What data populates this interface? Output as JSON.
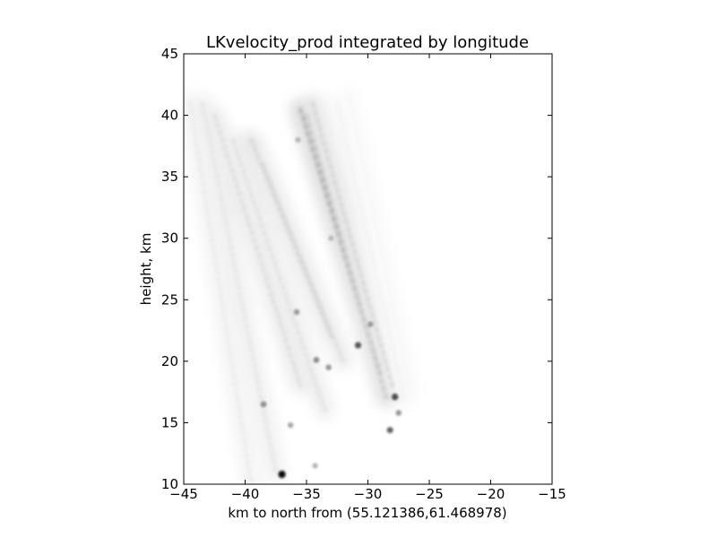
{
  "chart_data": {
    "type": "heatmap",
    "title": "LKvelocity_prod integrated by longitude",
    "xlabel": "km to north from (55.121386,61.468978)",
    "ylabel": "height, km",
    "xlim": [
      -45,
      -15
    ],
    "ylim": [
      10,
      45
    ],
    "x_ticks": [
      -45,
      -40,
      -35,
      -30,
      -25,
      -20,
      -15
    ],
    "y_ticks": [
      10,
      15,
      20,
      25,
      30,
      35,
      40,
      45
    ],
    "x_tick_labels": [
      "−45",
      "−40",
      "−35",
      "−30",
      "−25",
      "−20",
      "−15"
    ],
    "y_tick_labels": [
      "10",
      "15",
      "20",
      "25",
      "30",
      "35",
      "40",
      "45"
    ],
    "grid": false,
    "colormap": "grayscale (white = 0, black = max)",
    "streaks": [
      {
        "x1": -44.5,
        "y1": 41,
        "x2": -39.5,
        "y2": 10,
        "intensity": 0.1
      },
      {
        "x1": -43.5,
        "y1": 41,
        "x2": -37.5,
        "y2": 11,
        "intensity": 0.12
      },
      {
        "x1": -42.5,
        "y1": 40,
        "x2": -35.5,
        "y2": 18,
        "intensity": 0.16
      },
      {
        "x1": -41.0,
        "y1": 38,
        "x2": -33.5,
        "y2": 16,
        "intensity": 0.14
      },
      {
        "x1": -39.5,
        "y1": 38,
        "x2": -33.0,
        "y2": 22,
        "intensity": 0.2
      },
      {
        "x1": -38.5,
        "y1": 36,
        "x2": -32.0,
        "y2": 20,
        "intensity": 0.16
      },
      {
        "x1": -35.5,
        "y1": 40.5,
        "x2": -29.0,
        "y2": 19,
        "intensity": 0.38
      },
      {
        "x1": -35.0,
        "y1": 40,
        "x2": -28.5,
        "y2": 17,
        "intensity": 0.26
      },
      {
        "x1": -34.5,
        "y1": 41,
        "x2": -28.0,
        "y2": 18,
        "intensity": 0.2
      },
      {
        "x1": -32.5,
        "y1": 41,
        "x2": -27.0,
        "y2": 17,
        "intensity": 0.06
      },
      {
        "x1": -31.5,
        "y1": 41.5,
        "x2": -26.5,
        "y2": 17.5,
        "intensity": 0.04
      }
    ],
    "hot_spots": [
      {
        "x": -37.0,
        "y": 10.8,
        "intensity": 0.95
      },
      {
        "x": -30.8,
        "y": 21.3,
        "intensity": 0.65
      },
      {
        "x": -27.8,
        "y": 17.1,
        "intensity": 0.7
      },
      {
        "x": -28.2,
        "y": 14.4,
        "intensity": 0.6
      },
      {
        "x": -34.2,
        "y": 20.1,
        "intensity": 0.45
      },
      {
        "x": -33.2,
        "y": 19.5,
        "intensity": 0.4
      },
      {
        "x": -35.8,
        "y": 24.0,
        "intensity": 0.4
      },
      {
        "x": -38.5,
        "y": 16.5,
        "intensity": 0.45
      },
      {
        "x": -36.3,
        "y": 14.8,
        "intensity": 0.35
      },
      {
        "x": -34.3,
        "y": 11.5,
        "intensity": 0.3
      },
      {
        "x": -27.5,
        "y": 15.8,
        "intensity": 0.4
      },
      {
        "x": -29.8,
        "y": 23.0,
        "intensity": 0.4
      },
      {
        "x": -35.7,
        "y": 38.0,
        "intensity": 0.3
      },
      {
        "x": -33.0,
        "y": 30.0,
        "intensity": 0.28
      }
    ]
  }
}
